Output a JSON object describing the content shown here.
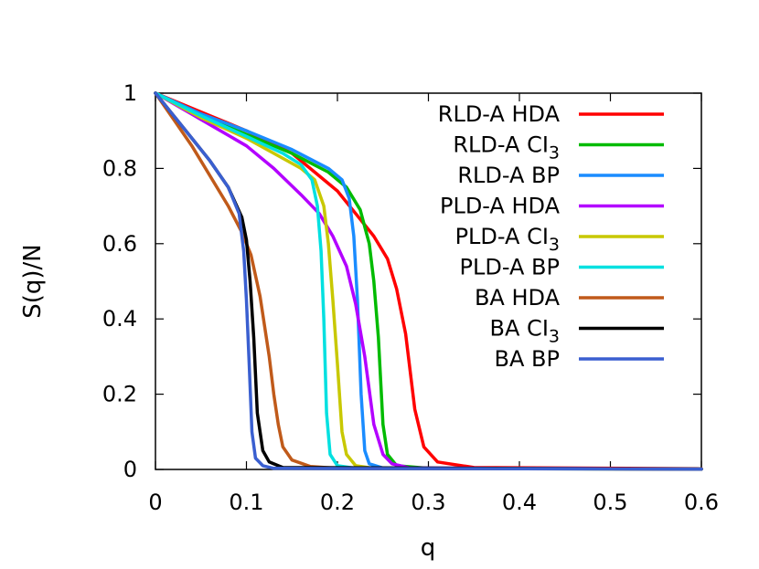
{
  "chart_data": {
    "type": "line",
    "title": "",
    "xlabel": "q",
    "ylabel": "S(q)/N",
    "xlim": [
      0,
      0.6
    ],
    "ylim": [
      0,
      1
    ],
    "x_ticks": [
      "0",
      "0.1",
      "0.2",
      "0.3",
      "0.4",
      "0.5",
      "0.6"
    ],
    "y_ticks": [
      "0",
      "0.2",
      "0.4",
      "0.6",
      "0.8",
      "1"
    ],
    "grid": false,
    "legend_position": "top-right",
    "series": [
      {
        "name": "RLD-A HDA",
        "label_main": "RLD-A HDA",
        "label_sub": "",
        "color": "#ff0000",
        "points": [
          [
            0,
            1
          ],
          [
            0.05,
            0.95
          ],
          [
            0.1,
            0.9
          ],
          [
            0.15,
            0.84
          ],
          [
            0.17,
            0.8
          ],
          [
            0.2,
            0.74
          ],
          [
            0.22,
            0.68
          ],
          [
            0.24,
            0.62
          ],
          [
            0.255,
            0.56
          ],
          [
            0.265,
            0.48
          ],
          [
            0.275,
            0.36
          ],
          [
            0.285,
            0.16
          ],
          [
            0.295,
            0.06
          ],
          [
            0.31,
            0.02
          ],
          [
            0.35,
            0.005
          ],
          [
            0.6,
            0.002
          ]
        ]
      },
      {
        "name": "RLD-A CI3",
        "label_main": "RLD-A CI",
        "label_sub": "3",
        "color": "#00bb00",
        "points": [
          [
            0,
            1
          ],
          [
            0.05,
            0.94
          ],
          [
            0.1,
            0.89
          ],
          [
            0.15,
            0.84
          ],
          [
            0.19,
            0.79
          ],
          [
            0.21,
            0.75
          ],
          [
            0.225,
            0.69
          ],
          [
            0.235,
            0.6
          ],
          [
            0.24,
            0.5
          ],
          [
            0.245,
            0.35
          ],
          [
            0.25,
            0.12
          ],
          [
            0.255,
            0.04
          ],
          [
            0.265,
            0.01
          ],
          [
            0.3,
            0.003
          ],
          [
            0.6,
            0.001
          ]
        ]
      },
      {
        "name": "RLD-A BP",
        "label_main": "RLD-A BP",
        "label_sub": "",
        "color": "#1a8cff",
        "points": [
          [
            0,
            1
          ],
          [
            0.05,
            0.945
          ],
          [
            0.1,
            0.9
          ],
          [
            0.15,
            0.85
          ],
          [
            0.19,
            0.8
          ],
          [
            0.205,
            0.77
          ],
          [
            0.213,
            0.72
          ],
          [
            0.218,
            0.62
          ],
          [
            0.222,
            0.45
          ],
          [
            0.226,
            0.2
          ],
          [
            0.23,
            0.05
          ],
          [
            0.235,
            0.015
          ],
          [
            0.25,
            0.004
          ],
          [
            0.6,
            0.001
          ]
        ]
      },
      {
        "name": "PLD-A HDA",
        "label_main": "PLD-A HDA",
        "label_sub": "",
        "color": "#b300ff",
        "points": [
          [
            0,
            1
          ],
          [
            0.05,
            0.93
          ],
          [
            0.1,
            0.86
          ],
          [
            0.13,
            0.8
          ],
          [
            0.16,
            0.73
          ],
          [
            0.18,
            0.68
          ],
          [
            0.195,
            0.62
          ],
          [
            0.21,
            0.54
          ],
          [
            0.22,
            0.44
          ],
          [
            0.23,
            0.3
          ],
          [
            0.24,
            0.12
          ],
          [
            0.25,
            0.04
          ],
          [
            0.26,
            0.015
          ],
          [
            0.28,
            0.004
          ],
          [
            0.6,
            0.001
          ]
        ]
      },
      {
        "name": "PLD-A CI3",
        "label_main": "PLD-A CI",
        "label_sub": "3",
        "color": "#c8c800",
        "points": [
          [
            0,
            1
          ],
          [
            0.05,
            0.935
          ],
          [
            0.1,
            0.88
          ],
          [
            0.13,
            0.84
          ],
          [
            0.16,
            0.8
          ],
          [
            0.175,
            0.77
          ],
          [
            0.185,
            0.7
          ],
          [
            0.19,
            0.6
          ],
          [
            0.195,
            0.45
          ],
          [
            0.2,
            0.28
          ],
          [
            0.205,
            0.1
          ],
          [
            0.21,
            0.04
          ],
          [
            0.22,
            0.01
          ],
          [
            0.24,
            0.003
          ],
          [
            0.6,
            0.001
          ]
        ]
      },
      {
        "name": "PLD-A BP",
        "label_main": "PLD-A BP",
        "label_sub": "",
        "color": "#00e0e0",
        "points": [
          [
            0,
            1
          ],
          [
            0.05,
            0.94
          ],
          [
            0.1,
            0.885
          ],
          [
            0.14,
            0.84
          ],
          [
            0.16,
            0.81
          ],
          [
            0.172,
            0.77
          ],
          [
            0.178,
            0.7
          ],
          [
            0.182,
            0.58
          ],
          [
            0.185,
            0.4
          ],
          [
            0.188,
            0.15
          ],
          [
            0.192,
            0.04
          ],
          [
            0.2,
            0.01
          ],
          [
            0.22,
            0.003
          ],
          [
            0.6,
            0.001
          ]
        ]
      },
      {
        "name": "BA HDA",
        "label_main": "BA HDA",
        "label_sub": "",
        "color": "#c05a1a",
        "points": [
          [
            0,
            1
          ],
          [
            0.02,
            0.93
          ],
          [
            0.04,
            0.86
          ],
          [
            0.06,
            0.78
          ],
          [
            0.08,
            0.7
          ],
          [
            0.095,
            0.63
          ],
          [
            0.105,
            0.57
          ],
          [
            0.115,
            0.46
          ],
          [
            0.125,
            0.3
          ],
          [
            0.13,
            0.2
          ],
          [
            0.135,
            0.12
          ],
          [
            0.14,
            0.06
          ],
          [
            0.15,
            0.025
          ],
          [
            0.17,
            0.008
          ],
          [
            0.2,
            0.003
          ],
          [
            0.6,
            0.001
          ]
        ]
      },
      {
        "name": "BA CI3",
        "label_main": "BA CI",
        "label_sub": "3",
        "color": "#000000",
        "points": [
          [
            0,
            1
          ],
          [
            0.02,
            0.94
          ],
          [
            0.04,
            0.88
          ],
          [
            0.06,
            0.82
          ],
          [
            0.08,
            0.75
          ],
          [
            0.095,
            0.67
          ],
          [
            0.1,
            0.61
          ],
          [
            0.104,
            0.5
          ],
          [
            0.108,
            0.35
          ],
          [
            0.112,
            0.15
          ],
          [
            0.118,
            0.05
          ],
          [
            0.125,
            0.02
          ],
          [
            0.14,
            0.005
          ],
          [
            0.6,
            0.001
          ]
        ]
      },
      {
        "name": "BA BP",
        "label_main": "BA BP",
        "label_sub": "",
        "color": "#3a5fd0",
        "points": [
          [
            0,
            1
          ],
          [
            0.02,
            0.94
          ],
          [
            0.04,
            0.88
          ],
          [
            0.06,
            0.82
          ],
          [
            0.08,
            0.75
          ],
          [
            0.092,
            0.68
          ],
          [
            0.097,
            0.58
          ],
          [
            0.1,
            0.45
          ],
          [
            0.103,
            0.28
          ],
          [
            0.106,
            0.1
          ],
          [
            0.11,
            0.03
          ],
          [
            0.118,
            0.01
          ],
          [
            0.13,
            0.003
          ],
          [
            0.6,
            0.001
          ]
        ]
      }
    ]
  }
}
